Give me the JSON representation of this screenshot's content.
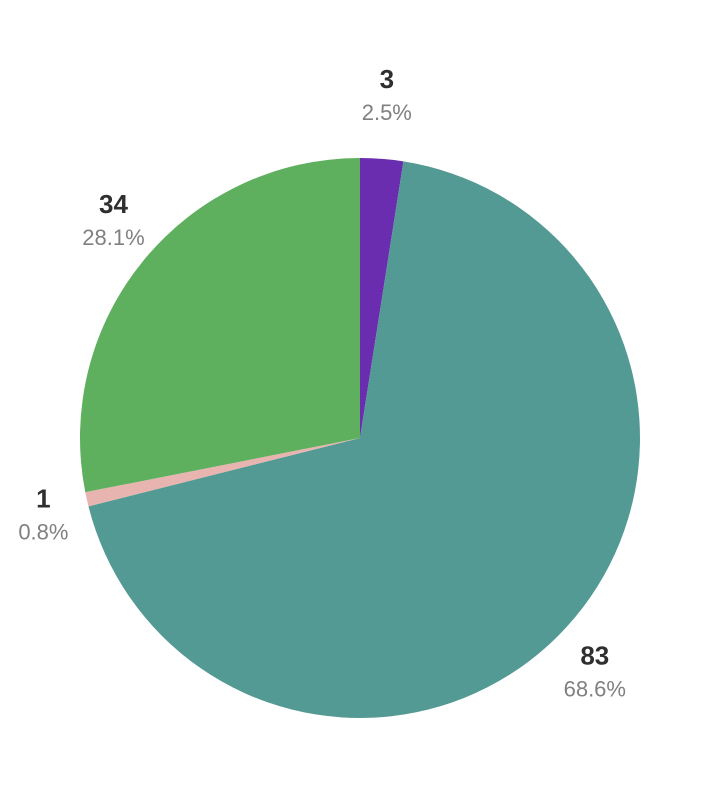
{
  "chart_data": {
    "type": "pie",
    "start_angle_deg": 0,
    "direction": "clockwise",
    "slices": [
      {
        "value": 3,
        "value_label": "3",
        "percent_label": "2.5%",
        "color": "#6a2db0"
      },
      {
        "value": 83,
        "value_label": "83",
        "percent_label": "68.6%",
        "color": "#549a94"
      },
      {
        "value": 1,
        "value_label": "1",
        "percent_label": "0.8%",
        "color": "#e8b4b0"
      },
      {
        "value": 34,
        "value_label": "34",
        "percent_label": "28.1%",
        "color": "#5eaf5e"
      }
    ]
  }
}
